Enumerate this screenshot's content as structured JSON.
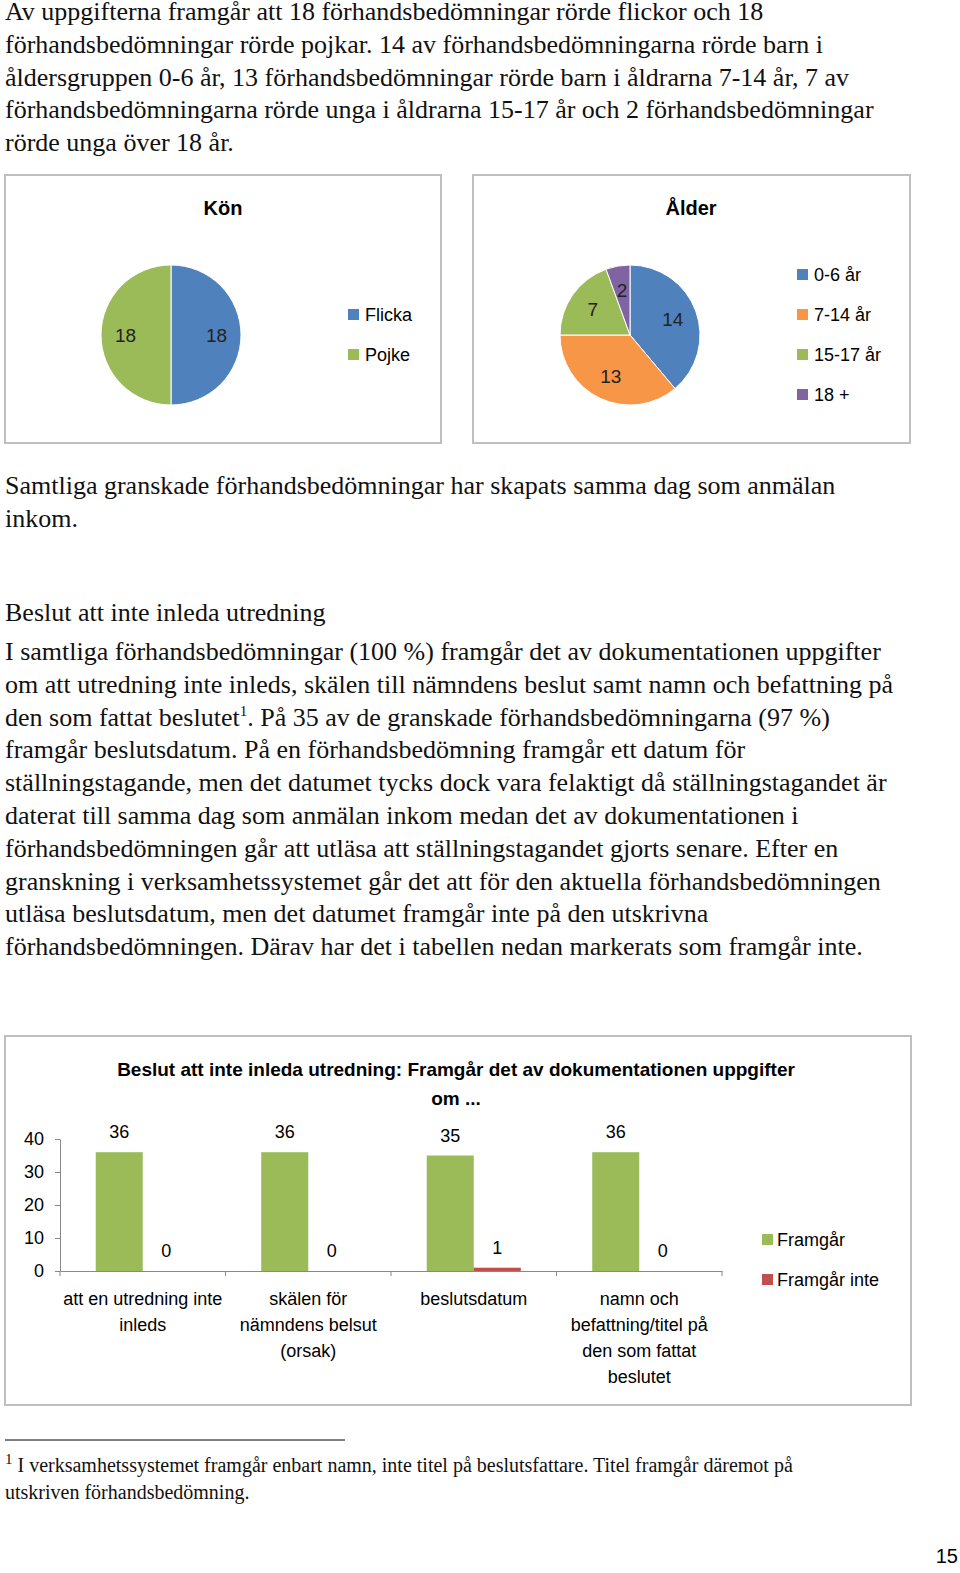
{
  "text": {
    "intro": "Av uppgifterna framgår att 18 förhandsbedömningar rörde flickor och 18 förhandsbedömningar rörde pojkar. 14 av förhandsbedömningarna rörde barn i åldersgruppen 0-6 år, 13 förhandsbedömningar rörde barn i åldrarna 7-14 år, 7 av förhandsbedömningarna rörde unga i åldrarna 15-17 år och 2 förhandsbedömningar rörde unga över 18 år.",
    "note": "Samtliga granskade förhandsbedömningar har skapats samma dag som anmälan inkom.",
    "heading": "Beslut att inte inleda utredning",
    "decision_part1": "I samtliga förhandsbedömningar (100 %) framgår det av dokumentationen uppgifter om att utredning inte inleds, skälen till nämndens beslut samt namn och befattning på den som fattat beslutet",
    "decision_part2": ". På 35 av de granskade förhandsbedömningarna (97 %) framgår beslutsdatum. På en förhandsbedömning framgår ett datum för ställningstagande, men det datumet tycks dock vara felaktigt då ställningstagandet är daterat till samma dag som anmälan inkom medan det av dokumentationen i förhandsbedömningen går att utläsa att ställningstagandet gjorts senare. Efter en granskning i verksamhetssystemet går det att för den aktuella förhandsbedömningen utläsa beslutsdatum, men det datumet framgår inte på den utskrivna förhandsbedömningen. Därav har det i tabellen nedan markerats som framgår inte.",
    "footnote_mark": "1",
    "footnote": "I verksamhetssystemet framgår enbart namn, inte titel på beslutsfattare. Titel framgår däremot på utskriven förhandsbedömning.",
    "page_number": "15"
  },
  "chart_data": [
    {
      "type": "pie",
      "title": "Kön",
      "categories": [
        "Flicka",
        "Pojke"
      ],
      "values": [
        18,
        18
      ],
      "colors": [
        "#4F81BD",
        "#9BBB59"
      ],
      "data_labels": true,
      "legend": "right"
    },
    {
      "type": "pie",
      "title": "Ålder",
      "categories": [
        "0-6 år",
        "7-14 år",
        "15-17 år",
        "18 +"
      ],
      "values": [
        14,
        13,
        7,
        2
      ],
      "colors": [
        "#4F81BD",
        "#F79646",
        "#9BBB59",
        "#8064A2"
      ],
      "data_labels": true,
      "legend": "right"
    },
    {
      "type": "bar",
      "title": "Beslut att inte inleda utredning: Framgår det av dokumentationen uppgifter om ...",
      "categories": [
        "att en utredning inte inleds",
        "skälen för nämndens belsut (orsak)",
        "beslutsdatum",
        "namn och befattning/titel på den som fattat beslutet"
      ],
      "series": [
        {
          "name": "Framgår",
          "color": "#9BBB59",
          "values": [
            36,
            36,
            35,
            36
          ]
        },
        {
          "name": "Framgår inte",
          "color": "#C0504D",
          "values": [
            0,
            0,
            1,
            0
          ]
        }
      ],
      "ylim": [
        0,
        40
      ],
      "yticks": [
        0,
        10,
        20,
        30,
        40
      ],
      "data_labels": true,
      "legend": "right"
    }
  ]
}
